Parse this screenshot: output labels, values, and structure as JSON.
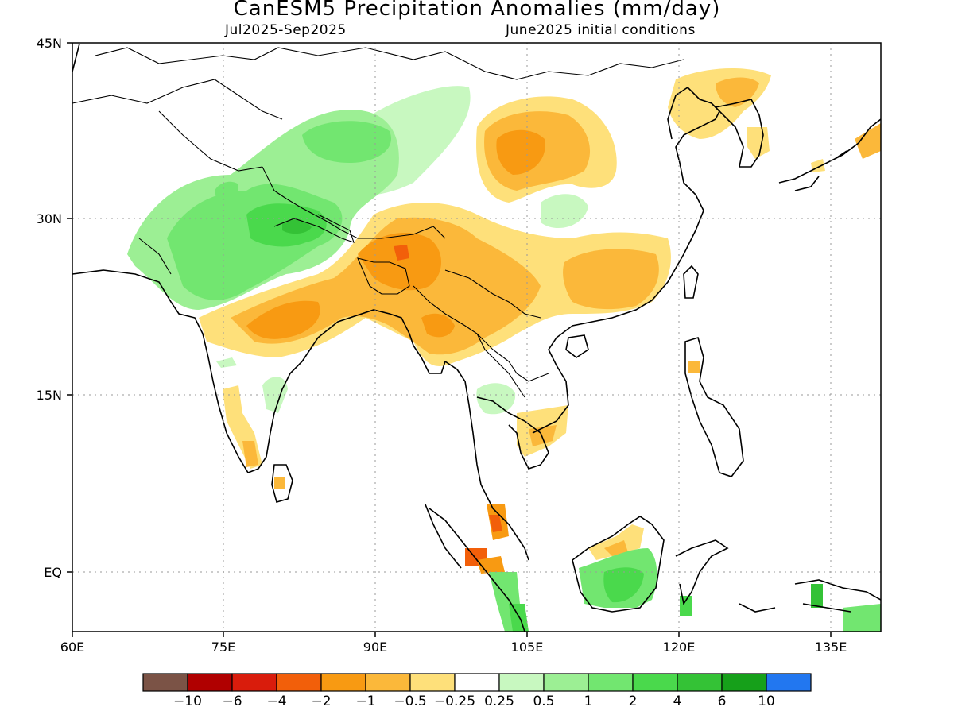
{
  "title": "CanESM5 Precipitation Anomalies (mm/day)",
  "subtitle_left": "Jul2025-Sep2025",
  "subtitle_right": "June2025 initial conditions",
  "map": {
    "lon_range": [
      60,
      140
    ],
    "lat_range": [
      -5.5,
      45
    ],
    "lon_ticks": [
      "60E",
      "75E",
      "90E",
      "105E",
      "120E",
      "135E"
    ],
    "lat_ticks": [
      "45N",
      "30N",
      "15N",
      "EQ"
    ],
    "gridlines": "dotted"
  },
  "colorbar": {
    "labels": [
      "-10",
      "-6",
      "-4",
      "-2",
      "-1",
      "-0.5",
      "-0.25",
      "0.25",
      "0.5",
      "1",
      "2",
      "4",
      "6",
      "10"
    ],
    "colors": [
      "#7b5346",
      "#b00000",
      "#d91c0c",
      "#f25f0a",
      "#f89a12",
      "#fbb83a",
      "#fee07a",
      "#ffffff",
      "#c8f8c0",
      "#9cef94",
      "#72e670",
      "#4ad94c",
      "#34c236",
      "#16a01a",
      "#2277f0"
    ]
  }
}
